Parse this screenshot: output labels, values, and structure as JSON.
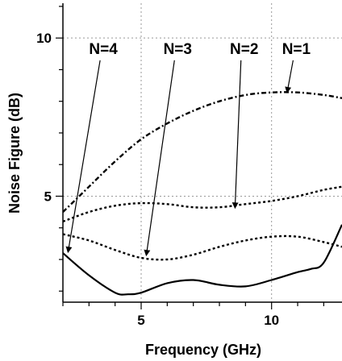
{
  "chart_data": {
    "type": "line",
    "xlabel": "Frequency (GHz)",
    "ylabel": "Noise Figure (dB)",
    "xlim": [
      2,
      12.7
    ],
    "ylim": [
      1.65,
      11.1
    ],
    "xticks": [
      5,
      10
    ],
    "yticks": [
      5,
      10
    ],
    "grid": true,
    "series": [
      {
        "name": "N=1",
        "style": "dash-dot",
        "x": [
          2,
          3,
          4,
          5,
          6,
          7,
          8,
          9,
          10,
          11,
          12,
          12.7
        ],
        "y": [
          4.5,
          5.3,
          6.1,
          6.8,
          7.3,
          7.7,
          8.0,
          8.2,
          8.28,
          8.28,
          8.2,
          8.1
        ]
      },
      {
        "name": "N=2",
        "style": "dotted",
        "x": [
          2,
          3,
          4,
          5,
          6,
          7,
          8,
          9,
          10,
          11,
          12,
          12.7
        ],
        "y": [
          4.2,
          4.5,
          4.7,
          4.78,
          4.75,
          4.65,
          4.65,
          4.75,
          4.85,
          5.0,
          5.2,
          5.3
        ]
      },
      {
        "name": "N=3",
        "style": "dotted",
        "x": [
          2,
          3,
          4,
          5,
          6,
          7,
          8,
          9,
          10,
          11,
          12,
          12.7
        ],
        "y": [
          3.8,
          3.6,
          3.3,
          3.05,
          3.0,
          3.15,
          3.4,
          3.6,
          3.72,
          3.72,
          3.55,
          3.4
        ]
      },
      {
        "name": "N=4",
        "style": "solid",
        "x": [
          2,
          3,
          4,
          4.5,
          5,
          6,
          7,
          8,
          9,
          10,
          11,
          11.5,
          12,
          12.7
        ],
        "y": [
          3.2,
          2.5,
          1.95,
          1.9,
          1.95,
          2.25,
          2.35,
          2.2,
          2.15,
          2.35,
          2.6,
          2.7,
          2.9,
          4.1
        ]
      }
    ],
    "annotations": [
      {
        "label": "N=4",
        "text_x": 3.55,
        "text_y": 9.5,
        "arrow_to_x": 2.2,
        "arrow_to_y": 3.25
      },
      {
        "label": "N=3",
        "text_x": 6.4,
        "text_y": 9.5,
        "arrow_to_x": 5.2,
        "arrow_to_y": 3.15
      },
      {
        "label": "N=2",
        "text_x": 8.95,
        "text_y": 9.5,
        "arrow_to_x": 8.6,
        "arrow_to_y": 4.65
      },
      {
        "label": "N=1",
        "text_x": 10.95,
        "text_y": 9.5,
        "arrow_to_x": 10.6,
        "arrow_to_y": 8.3
      }
    ]
  }
}
